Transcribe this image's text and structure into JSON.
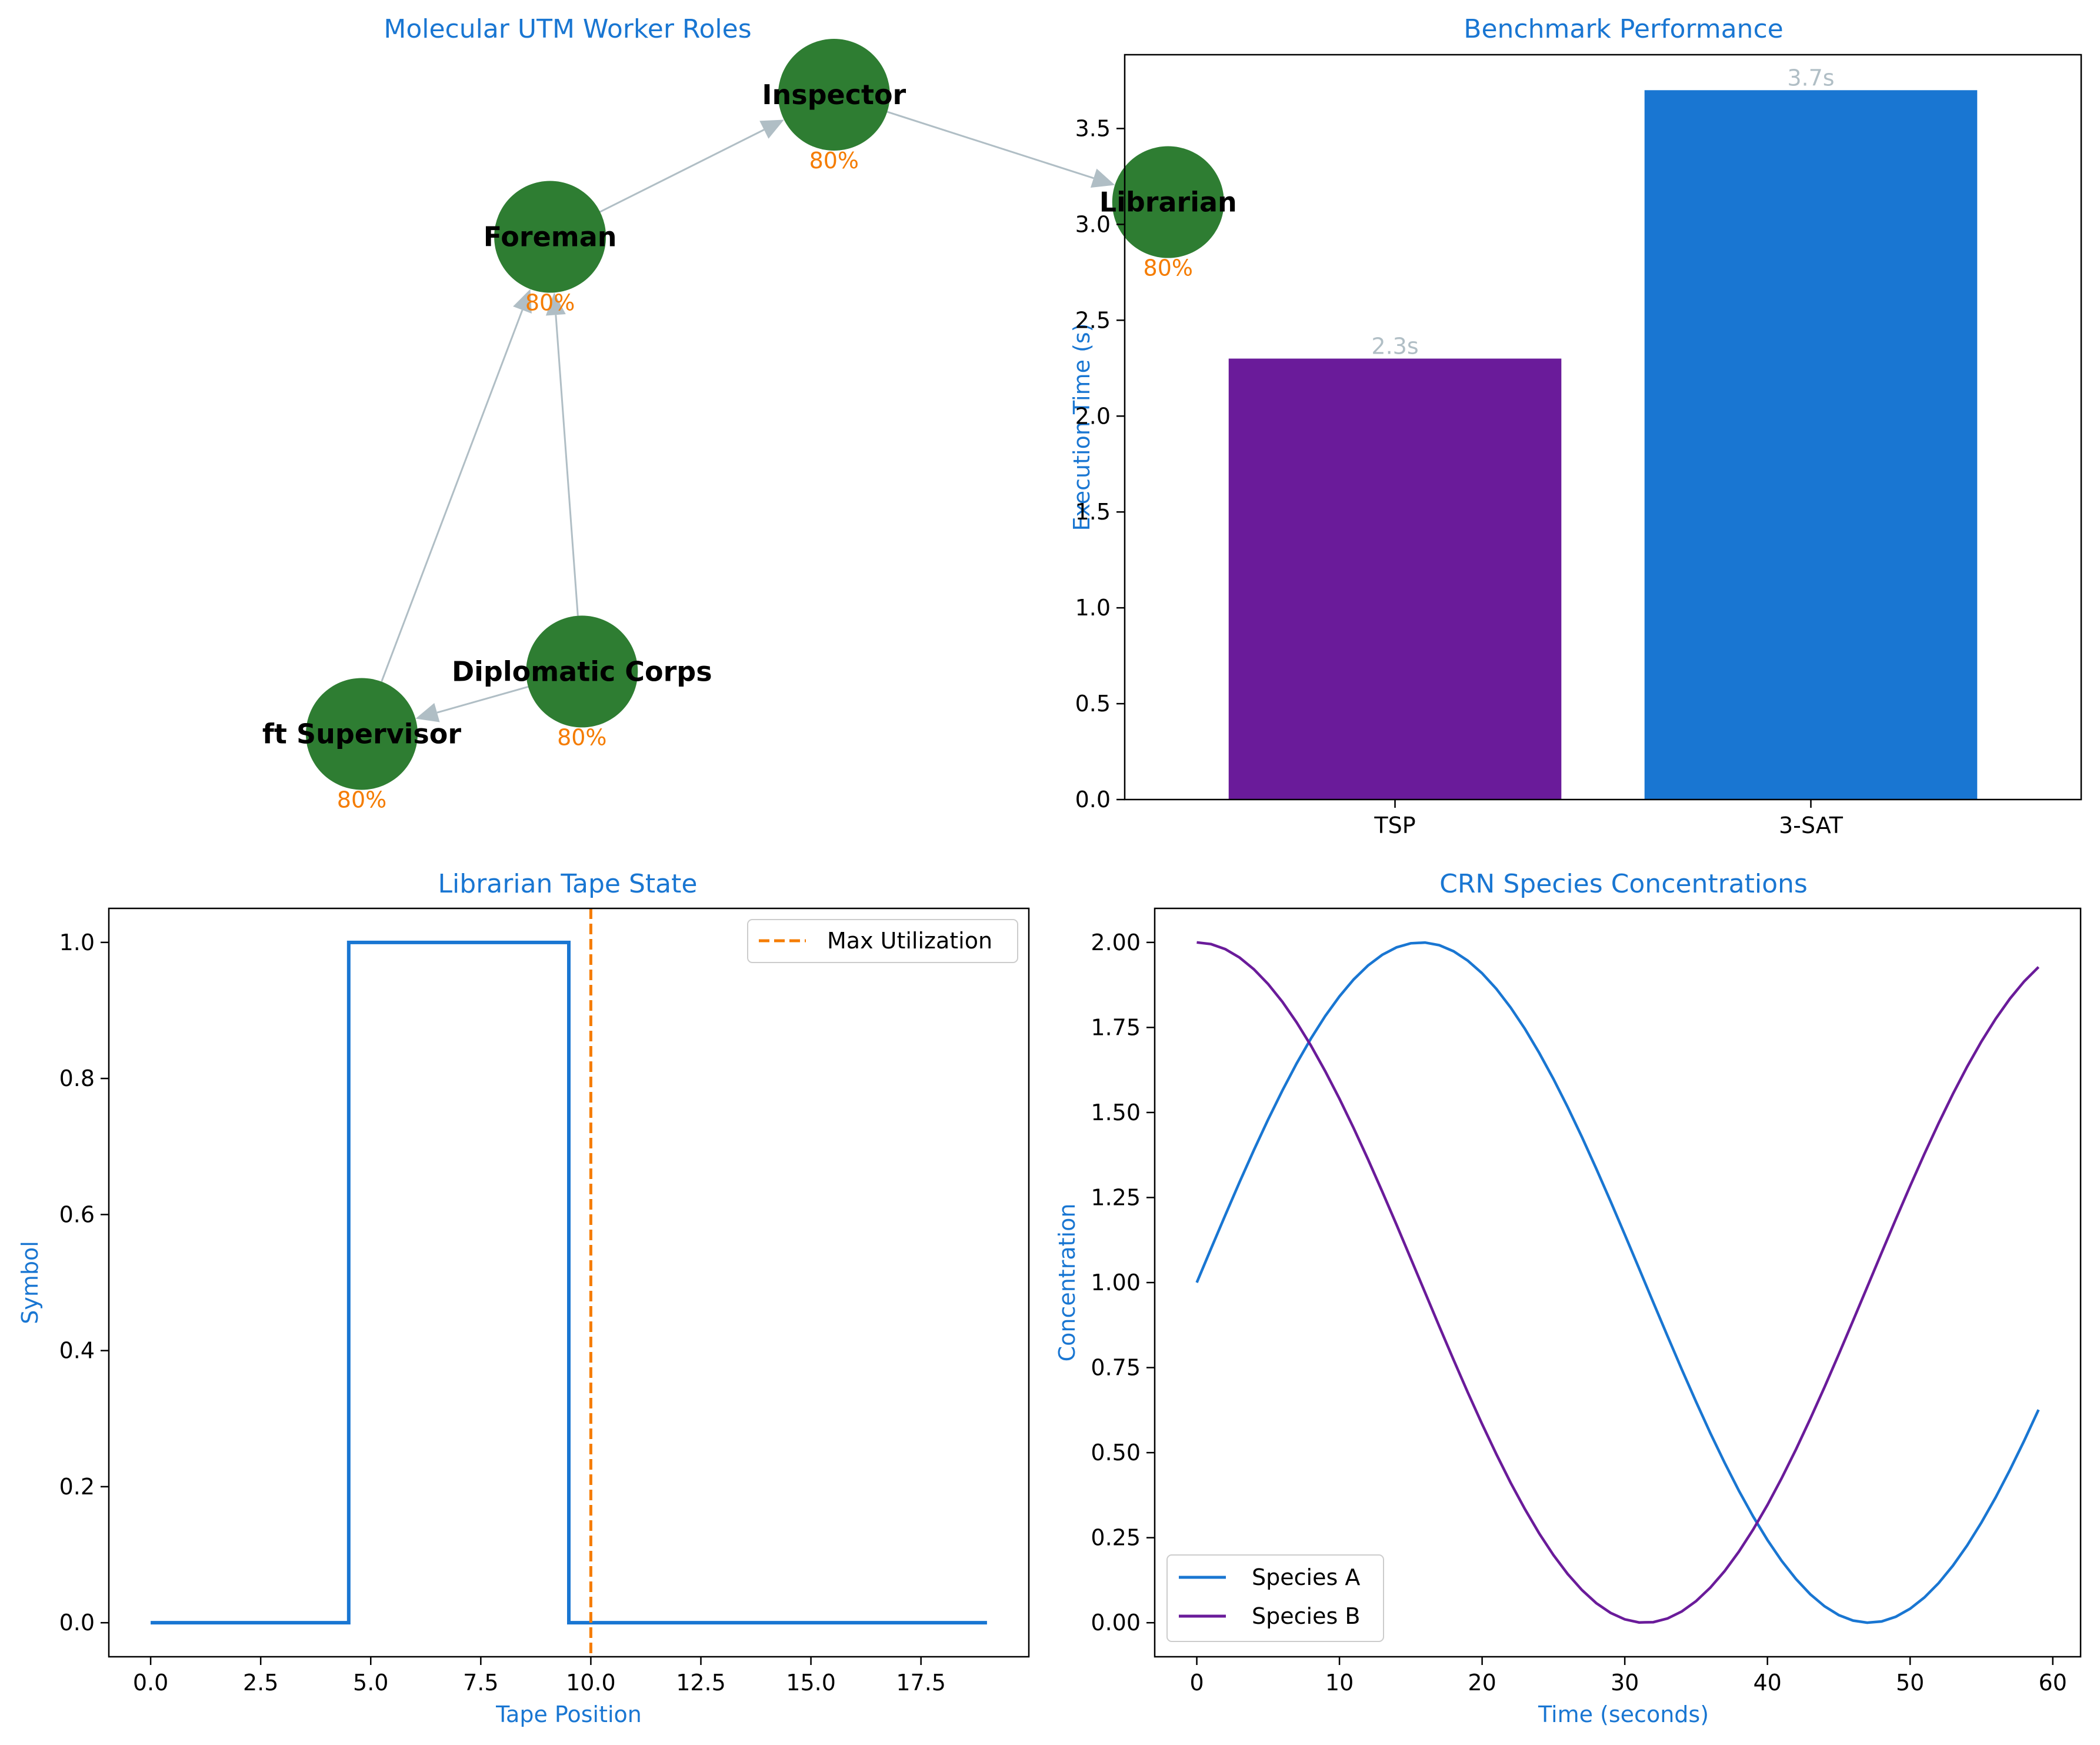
{
  "colors": {
    "title": "#1976d2",
    "axis_label": "#1976d2",
    "tick": "#000000",
    "node": "#2e7d32",
    "edge": "#b0bec5",
    "node_pct": "#f57c00",
    "bar_label": "#b0bec5",
    "line_blue": "#1976d2",
    "line_purple": "#6a1b9a",
    "vline": "#f57c00"
  },
  "chart_data": [
    {
      "type": "network",
      "title": "Molecular UTM Worker Roles",
      "nodes": [
        {
          "id": "inspector",
          "label": "Inspector",
          "value": "80%",
          "x": 0.434,
          "y": 1.0
        },
        {
          "id": "librarian",
          "label": "Librarian",
          "value": "80%",
          "x": 1.0,
          "y": 0.833
        },
        {
          "id": "foreman",
          "label": "Foreman",
          "value": "80%",
          "x": -0.047,
          "y": 0.779
        },
        {
          "id": "diplomatic",
          "label": "Diplomatic Corps",
          "value": "80%",
          "x": 0.007,
          "y": 0.103
        },
        {
          "id": "supervisor",
          "label": "ft Supervisor",
          "value": "80%",
          "x": -0.366,
          "y": 0.006
        }
      ],
      "edges": [
        {
          "from": "foreman",
          "to": "inspector"
        },
        {
          "from": "inspector",
          "to": "librarian"
        },
        {
          "from": "supervisor",
          "to": "foreman"
        },
        {
          "from": "diplomatic",
          "to": "foreman"
        },
        {
          "from": "diplomatic",
          "to": "supervisor"
        }
      ]
    },
    {
      "type": "bar",
      "title": "Benchmark Performance",
      "xlabel": "",
      "ylabel": "Execution Time (s)",
      "categories": [
        "TSP",
        "3-SAT"
      ],
      "values": [
        2.3,
        3.7
      ],
      "value_labels": [
        "2.3s",
        "3.7s"
      ],
      "bar_colors": [
        "#6a1b9a",
        "#1976d2"
      ],
      "ylim": [
        0,
        3.885
      ],
      "yticks": [
        0.0,
        0.5,
        1.0,
        1.5,
        2.0,
        2.5,
        3.0,
        3.5
      ],
      "ytick_labels": [
        "0.0",
        "0.5",
        "1.0",
        "1.5",
        "2.0",
        "2.5",
        "3.0",
        "3.5"
      ]
    },
    {
      "type": "line",
      "title": "Librarian Tape State",
      "xlabel": "Tape Position",
      "ylabel": "Symbol",
      "step": "mid",
      "x": [
        0,
        1,
        2,
        3,
        4,
        5,
        6,
        7,
        8,
        9,
        10,
        11,
        12,
        13,
        14,
        15,
        16,
        17,
        18,
        19
      ],
      "series": [
        {
          "values": [
            0,
            0,
            0,
            0,
            0,
            1,
            1,
            1,
            1,
            1,
            0,
            0,
            0,
            0,
            0,
            0,
            0,
            0,
            0,
            0
          ]
        }
      ],
      "vline": {
        "x": 10,
        "label": "Max Utilization"
      },
      "xlim": [
        -0.95,
        19.95
      ],
      "ylim": [
        -0.05,
        1.05
      ],
      "xticks": [
        0.0,
        2.5,
        5.0,
        7.5,
        10.0,
        12.5,
        15.0,
        17.5
      ],
      "xtick_labels": [
        "0.0",
        "2.5",
        "5.0",
        "7.5",
        "10.0",
        "12.5",
        "15.0",
        "17.5"
      ],
      "yticks": [
        0.0,
        0.2,
        0.4,
        0.6,
        0.8,
        1.0
      ],
      "ytick_labels": [
        "0.0",
        "0.2",
        "0.4",
        "0.6",
        "0.8",
        "1.0"
      ],
      "legend": {
        "position": "upper-right"
      }
    },
    {
      "type": "line",
      "title": "CRN Species Concentrations",
      "xlabel": "Time (seconds)",
      "ylabel": "Concentration",
      "x_range": [
        0,
        59
      ],
      "series": [
        {
          "name": "Species A",
          "function": "1 + sin(0.1*t)",
          "values_at_0_10_20_30_40_50_59": [
            1.0,
            1.84,
            1.91,
            1.14,
            0.24,
            0.04,
            0.63
          ]
        },
        {
          "name": "Species B",
          "function": "1 + cos(0.1*t)",
          "values_at_0_10_20_30_40_50_59": [
            2.0,
            1.54,
            0.58,
            0.01,
            0.35,
            1.28,
            1.93
          ]
        }
      ],
      "xlim": [
        -2.95,
        61.95
      ],
      "ylim": [
        -0.1,
        2.1
      ],
      "xticks": [
        0,
        10,
        20,
        30,
        40,
        50,
        60
      ],
      "xtick_labels": [
        "0",
        "10",
        "20",
        "30",
        "40",
        "50",
        "60"
      ],
      "yticks": [
        0.0,
        0.25,
        0.5,
        0.75,
        1.0,
        1.25,
        1.5,
        1.75,
        2.0
      ],
      "ytick_labels": [
        "0.00",
        "0.25",
        "0.50",
        "0.75",
        "1.00",
        "1.25",
        "1.50",
        "1.75",
        "2.00"
      ],
      "legend": {
        "position": "lower-left"
      }
    }
  ]
}
